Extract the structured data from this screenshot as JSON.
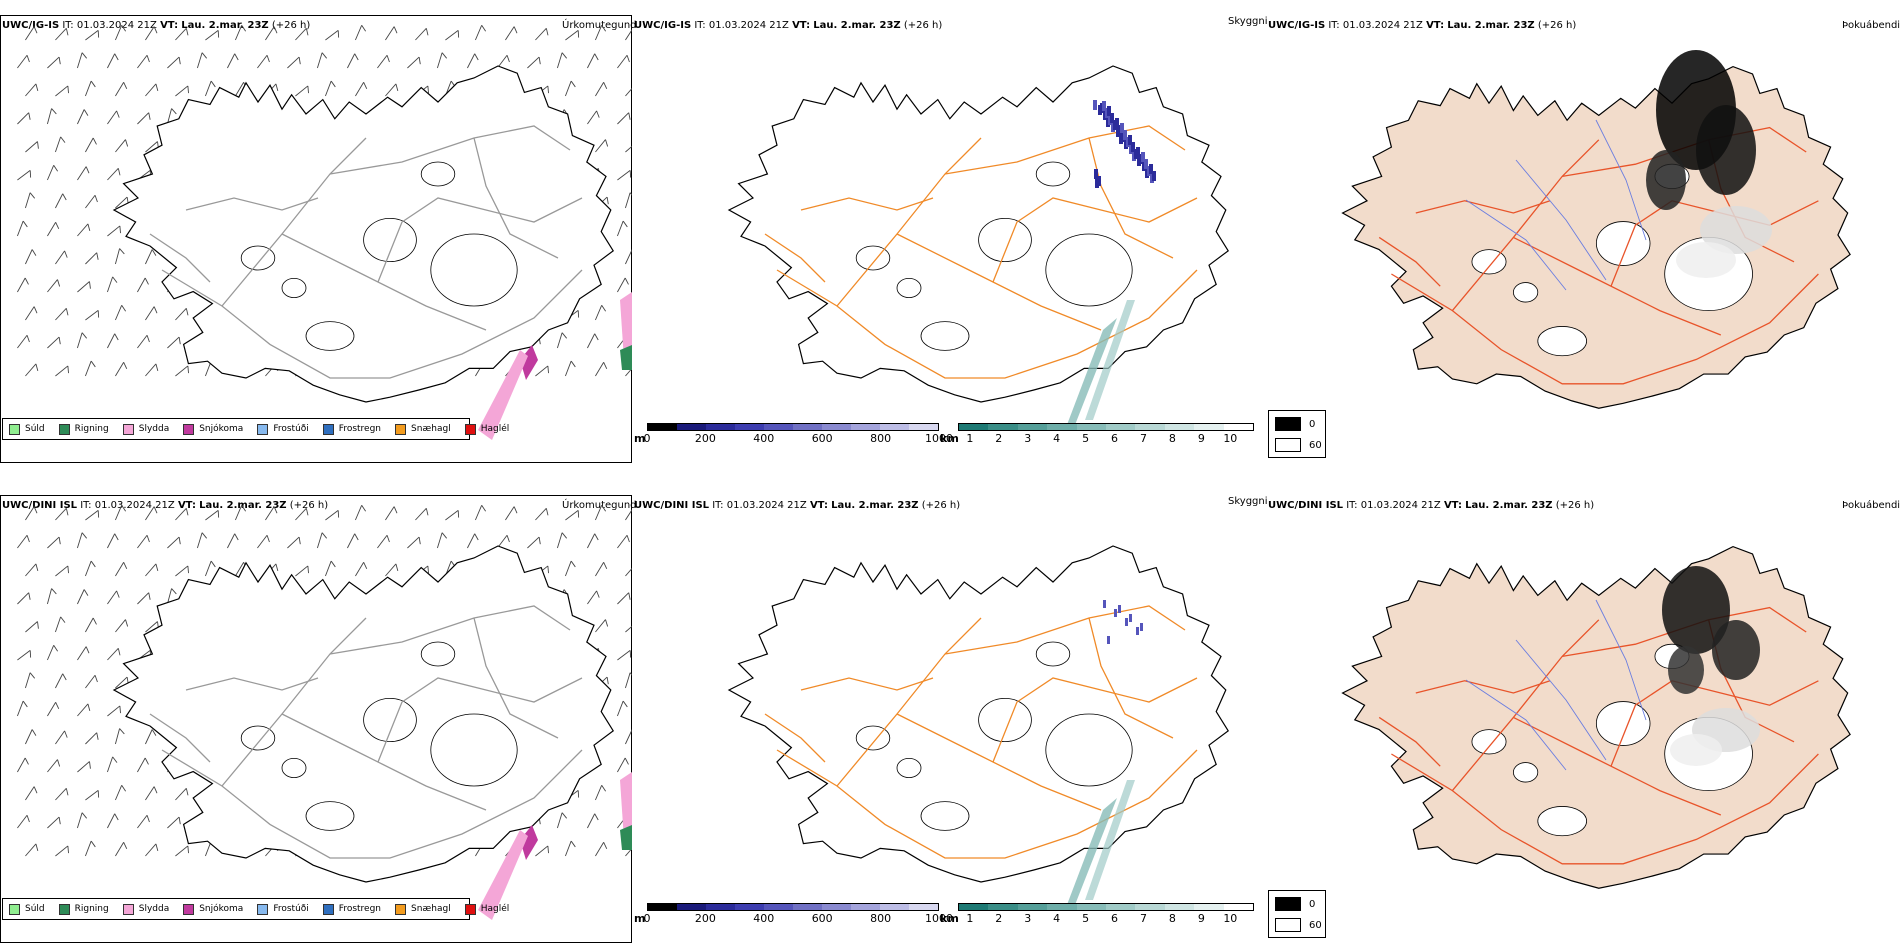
{
  "rows": [
    {
      "model": "UWC/IG-IS",
      "it_label": "IT:",
      "it_value": "01.03.2024 21Z",
      "vt_label": "VT:",
      "vt_value": "Lau. 2.mar. 23Z",
      "lead": "(+26 h)",
      "titles": [
        "Úrkomutegund",
        "Skyggni",
        "Þokuábendi"
      ]
    },
    {
      "model": "UWC/DINI ISL",
      "it_label": "IT:",
      "it_value": "01.03.2024 21Z",
      "vt_label": "VT:",
      "vt_value": "Lau. 2.mar. 23Z",
      "lead": "(+26 h)",
      "titles": [
        "Úrkomutegund",
        "Skyggni",
        "Þokuábendi"
      ]
    }
  ],
  "precip_legend": [
    {
      "label": "Súld",
      "color": "#90ee90"
    },
    {
      "label": "Rigning",
      "color": "#2e8b57"
    },
    {
      "label": "Slydda",
      "color": "#f4a6d7"
    },
    {
      "label": "Snjókoma",
      "color": "#c03a9e"
    },
    {
      "label": "Frostúði",
      "color": "#87b9ee"
    },
    {
      "label": "Frostregn",
      "color": "#2f6fbf"
    },
    {
      "label": "Snæhagl",
      "color": "#f39c1e"
    },
    {
      "label": "Haglél",
      "color": "#e01010"
    }
  ],
  "cloud_base_bar": {
    "unit": "m",
    "ticks": [
      "0",
      "200",
      "400",
      "600",
      "800",
      "1000"
    ],
    "colors": [
      "#000000",
      "#1a1a7a",
      "#2b2b9a",
      "#3d3db0",
      "#5555bb",
      "#7070c4",
      "#8a8ad0",
      "#a4a4dc",
      "#bdbde6",
      "#d8d8f0"
    ]
  },
  "visibility_bar": {
    "unit": "km",
    "ticks": [
      "1",
      "2",
      "3",
      "4",
      "5",
      "6",
      "7",
      "8",
      "9",
      "10"
    ],
    "colors": [
      "#1e7a74",
      "#3a8e87",
      "#559f99",
      "#6eaea9",
      "#87bcb8",
      "#a0cbc7",
      "#b8d8d5",
      "#cfe5e3",
      "#e5f1f0",
      "#ffffff"
    ]
  },
  "fog_legend": [
    {
      "label": "0",
      "color": "#000000"
    },
    {
      "label": "60",
      "color": "#ffffff"
    }
  ]
}
